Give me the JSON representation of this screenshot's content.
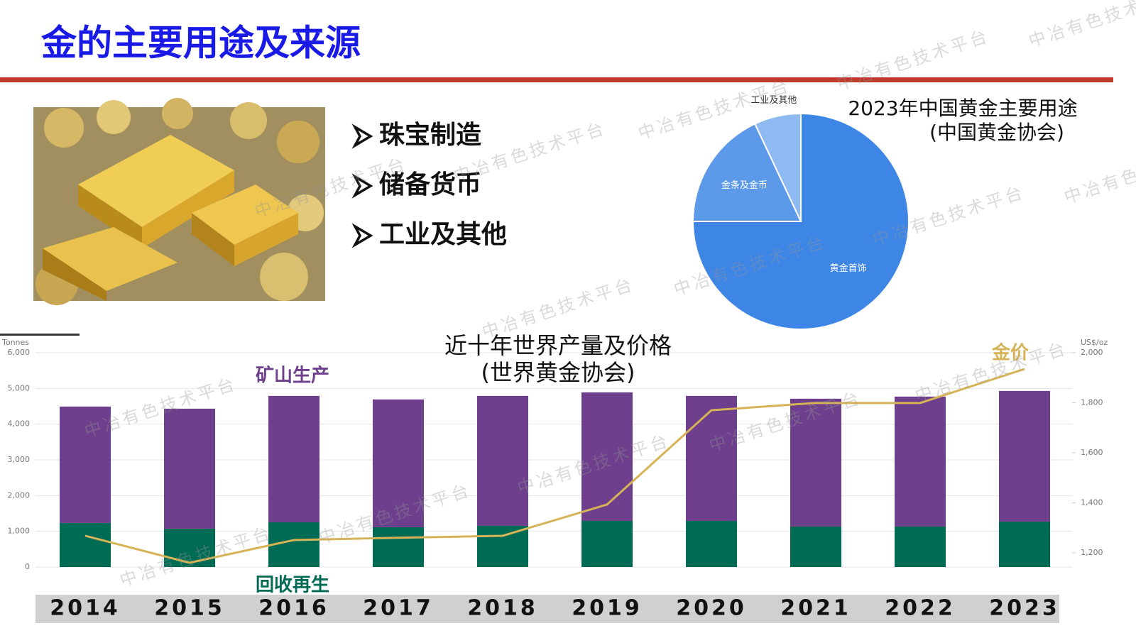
{
  "header": {
    "title": "金的主要用途及来源"
  },
  "bullets": [
    "珠宝制造",
    "储备货币",
    "工业及其他"
  ],
  "watermark": "中冶有色技术平台",
  "chart_data": [
    {
      "type": "pie",
      "title": "2023年中国黄金主要用途",
      "subtitle": "(中国黄金协会)",
      "categories": [
        "黄金首饰",
        "金条及金币",
        "工业及其他"
      ],
      "values": [
        75,
        18,
        7
      ],
      "colors": [
        "#3d86e6",
        "#5d99e9",
        "#8fbaf1"
      ]
    },
    {
      "type": "bar",
      "title": "近十年世界产量及价格",
      "subtitle": "(世界黄金协会)",
      "stacked": true,
      "grid": true,
      "ylabel": "Tonnes",
      "y2label": "US$/oz",
      "categories": [
        "2014",
        "2015",
        "2016",
        "2017",
        "2018",
        "2019",
        "2020",
        "2021",
        "2022",
        "2023"
      ],
      "series": [
        {
          "name": "回收再生",
          "color": "#006b54",
          "type": "bar",
          "values": [
            1233,
            1074,
            1252,
            1113,
            1153,
            1292,
            1292,
            1133,
            1133,
            1272
          ]
        },
        {
          "name": "矿山生产",
          "color": "#6d3f8c",
          "type": "bar",
          "values": [
            3260,
            3359,
            3539,
            3579,
            3638,
            3599,
            3499,
            3579,
            3638,
            3658
          ]
        },
        {
          "name": "金价",
          "color": "#d6b356",
          "type": "line",
          "axis": "y2",
          "values": [
            1268,
            1160,
            1251,
            1260,
            1268,
            1393,
            1770,
            1799,
            1799,
            1935
          ]
        }
      ],
      "ylim": [
        0,
        6000
      ],
      "yticks": [
        0,
        {
          "value": 1000,
          "label": "1,000"
        },
        {
          "value": 2000,
          "label": "2,000"
        },
        {
          "value": 3000,
          "label": "3,000"
        },
        {
          "value": 4000,
          "label": "4,000"
        },
        {
          "value": 5000,
          "label": "5,000"
        },
        {
          "value": 6000,
          "label": "6,000"
        }
      ],
      "y2lim": [
        1143,
        2000
      ],
      "y2ticks": [
        {
          "value": 1200,
          "label": "1,200"
        },
        {
          "value": 1400,
          "label": "1,400"
        },
        {
          "value": 1600,
          "label": "1,600"
        },
        {
          "value": 1800,
          "label": "1,800"
        },
        {
          "value": 2000,
          "label": "2,000"
        }
      ]
    }
  ]
}
